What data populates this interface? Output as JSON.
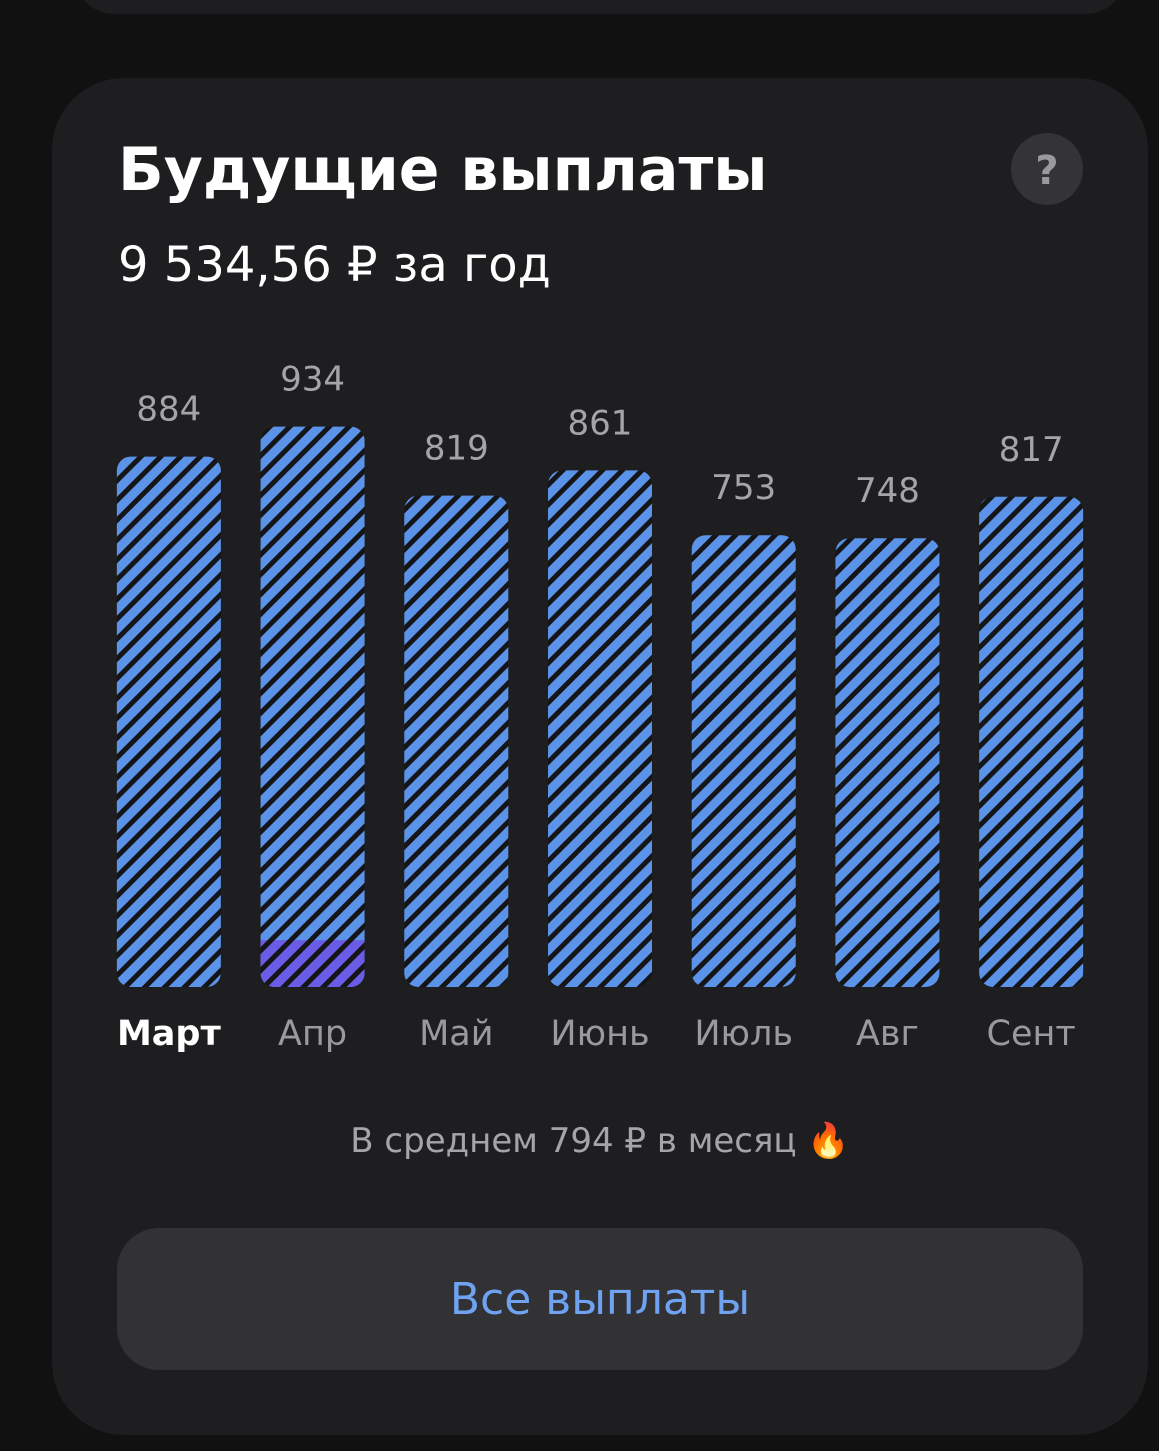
{
  "header": {
    "title": "Будущие выплаты",
    "subtitle": "9 534,56 ₽ за год",
    "help": "?"
  },
  "chart_data": {
    "type": "bar",
    "categories": [
      "Март",
      "Апр",
      "Май",
      "Июнь",
      "Июль",
      "Авг",
      "Сент"
    ],
    "values": [
      884,
      934,
      819,
      861,
      753,
      748,
      817
    ],
    "color": "#5b93e8",
    "overlay": {
      "color": "#6a5ce6",
      "values": [
        null,
        78,
        null,
        null,
        null,
        null,
        null
      ]
    },
    "selected_index": 0
  },
  "footer": {
    "average": "В среднем 794 ₽ в месяц 🔥",
    "button": "Все выплаты"
  }
}
